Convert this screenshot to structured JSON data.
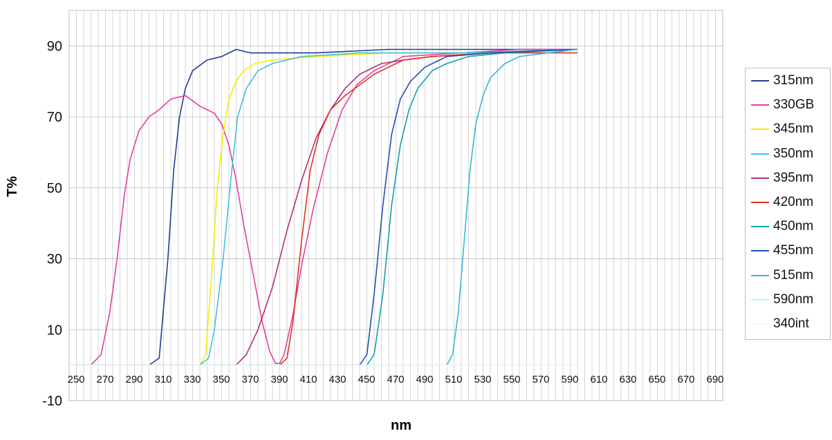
{
  "chart_data": {
    "type": "line",
    "title": "",
    "xlabel": "nm",
    "ylabel": "T%",
    "xlim": [
      250,
      700
    ],
    "ylim": [
      -10,
      100
    ],
    "x_ticks": [
      250,
      270,
      290,
      310,
      330,
      350,
      370,
      390,
      410,
      430,
      450,
      470,
      490,
      510,
      530,
      550,
      570,
      590,
      610,
      630,
      650,
      670,
      690
    ],
    "y_ticks": [
      -10,
      10,
      30,
      50,
      70,
      90
    ],
    "grid": true,
    "legend_position": "right",
    "series": [
      {
        "name": "315nm",
        "color": "#1f3c8f",
        "points": [
          [
            250,
            0
          ],
          [
            305,
            0
          ],
          [
            312,
            2
          ],
          [
            318,
            30
          ],
          [
            322,
            55
          ],
          [
            326,
            70
          ],
          [
            330,
            78
          ],
          [
            335,
            83
          ],
          [
            345,
            86
          ],
          [
            355,
            87
          ],
          [
            365,
            89
          ],
          [
            375,
            88
          ],
          [
            390,
            88
          ],
          [
            420,
            88
          ],
          [
            470,
            89
          ],
          [
            530,
            89
          ],
          [
            600,
            89
          ]
        ]
      },
      {
        "name": "330GB",
        "color": "#e0409a",
        "points": [
          [
            250,
            0
          ],
          [
            265,
            0
          ],
          [
            272,
            3
          ],
          [
            278,
            15
          ],
          [
            283,
            30
          ],
          [
            288,
            48
          ],
          [
            292,
            58
          ],
          [
            298,
            66
          ],
          [
            305,
            70
          ],
          [
            312,
            72
          ],
          [
            320,
            75
          ],
          [
            330,
            76
          ],
          [
            340,
            73
          ],
          [
            350,
            71
          ],
          [
            355,
            68
          ],
          [
            360,
            62
          ],
          [
            365,
            52
          ],
          [
            370,
            40
          ],
          [
            377,
            25
          ],
          [
            383,
            12
          ],
          [
            388,
            4
          ],
          [
            392,
            0.5
          ],
          [
            395,
            0.5
          ],
          [
            398,
            3
          ],
          [
            404,
            14
          ],
          [
            410,
            28
          ],
          [
            418,
            44
          ],
          [
            428,
            60
          ],
          [
            438,
            72
          ],
          [
            448,
            79
          ],
          [
            460,
            83
          ],
          [
            480,
            87
          ],
          [
            520,
            88
          ],
          [
            560,
            89
          ],
          [
            600,
            89
          ]
        ]
      },
      {
        "name": "345nm",
        "color": "#f0f000",
        "points": [
          [
            250,
            0
          ],
          [
            340,
            0
          ],
          [
            344,
            3
          ],
          [
            348,
            25
          ],
          [
            352,
            50
          ],
          [
            356,
            65
          ],
          [
            360,
            75
          ],
          [
            365,
            80
          ],
          [
            370,
            83
          ],
          [
            378,
            85
          ],
          [
            390,
            86
          ],
          [
            420,
            87
          ],
          [
            470,
            88
          ],
          [
            530,
            88
          ],
          [
            600,
            89
          ]
        ]
      },
      {
        "name": "350nm",
        "color": "#40c0e0",
        "points": [
          [
            250,
            0
          ],
          [
            340,
            0
          ],
          [
            346,
            2
          ],
          [
            350,
            10
          ],
          [
            356,
            30
          ],
          [
            362,
            55
          ],
          [
            366,
            70
          ],
          [
            372,
            78
          ],
          [
            380,
            83
          ],
          [
            390,
            85
          ],
          [
            410,
            87
          ],
          [
            450,
            88
          ],
          [
            520,
            88
          ],
          [
            600,
            89
          ]
        ]
      },
      {
        "name": "395nm",
        "color": "#b0307a",
        "points": [
          [
            250,
            0
          ],
          [
            365,
            0
          ],
          [
            372,
            3
          ],
          [
            380,
            10
          ],
          [
            390,
            22
          ],
          [
            400,
            38
          ],
          [
            410,
            52
          ],
          [
            420,
            64
          ],
          [
            430,
            72
          ],
          [
            440,
            78
          ],
          [
            450,
            82
          ],
          [
            465,
            85
          ],
          [
            480,
            86
          ],
          [
            500,
            87
          ],
          [
            540,
            88
          ],
          [
            600,
            89
          ]
        ]
      },
      {
        "name": "420nm",
        "color": "#e03020",
        "points": [
          [
            250,
            0
          ],
          [
            395,
            0
          ],
          [
            400,
            2
          ],
          [
            404,
            12
          ],
          [
            410,
            35
          ],
          [
            416,
            55
          ],
          [
            422,
            65
          ],
          [
            430,
            72
          ],
          [
            440,
            76
          ],
          [
            450,
            79
          ],
          [
            460,
            82
          ],
          [
            470,
            84
          ],
          [
            480,
            86
          ],
          [
            500,
            87
          ],
          [
            540,
            88
          ],
          [
            600,
            88
          ]
        ]
      },
      {
        "name": "450nm",
        "color": "#10a0b0",
        "points": [
          [
            250,
            0
          ],
          [
            455,
            0
          ],
          [
            460,
            3
          ],
          [
            466,
            20
          ],
          [
            472,
            45
          ],
          [
            478,
            62
          ],
          [
            484,
            72
          ],
          [
            490,
            78
          ],
          [
            500,
            83
          ],
          [
            510,
            85
          ],
          [
            525,
            87
          ],
          [
            550,
            88
          ],
          [
            600,
            89
          ]
        ]
      },
      {
        "name": "455nm",
        "color": "#2050b0",
        "points": [
          [
            250,
            0
          ],
          [
            450,
            0
          ],
          [
            455,
            3
          ],
          [
            460,
            20
          ],
          [
            466,
            45
          ],
          [
            472,
            65
          ],
          [
            478,
            75
          ],
          [
            485,
            80
          ],
          [
            495,
            84
          ],
          [
            510,
            87
          ],
          [
            540,
            88
          ],
          [
            600,
            89
          ]
        ]
      },
      {
        "name": "515nm",
        "color": "#30b8d8",
        "points": [
          [
            250,
            0
          ],
          [
            510,
            0
          ],
          [
            514,
            3
          ],
          [
            518,
            15
          ],
          [
            522,
            35
          ],
          [
            526,
            55
          ],
          [
            530,
            68
          ],
          [
            535,
            76
          ],
          [
            540,
            81
          ],
          [
            550,
            85
          ],
          [
            560,
            87
          ],
          [
            580,
            88
          ],
          [
            600,
            89
          ]
        ]
      },
      {
        "name": "590nm",
        "color": "#c8eef4",
        "points": [
          [
            250,
            0
          ],
          [
            590,
            0
          ],
          [
            600,
            0
          ]
        ]
      },
      {
        "name": "340int",
        "color": "#f4f4f4",
        "points": [
          [
            250,
            0
          ],
          [
            600,
            0
          ]
        ]
      }
    ]
  }
}
